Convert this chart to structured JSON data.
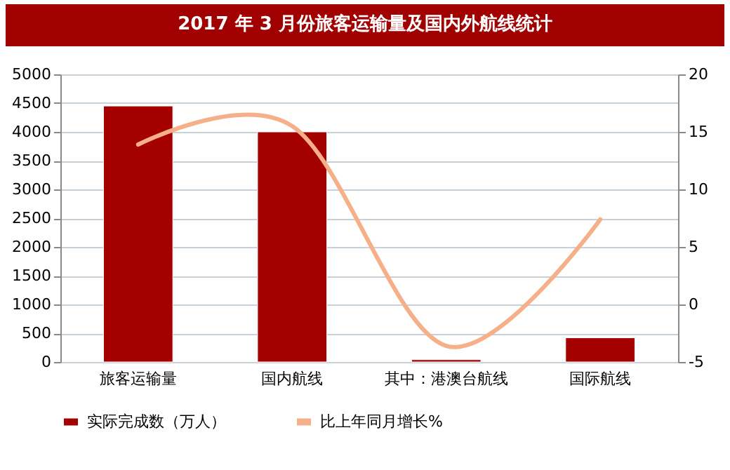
{
  "chart_data": {
    "type": "bar",
    "title": "2017 年 3 月份旅客运输量及国内外航线统计",
    "categories": [
      "旅客运输量",
      "国内航线",
      "其中：港澳台航线",
      "国际航线"
    ],
    "series": [
      {
        "name": "实际完成数（万人）",
        "color": "#a50000",
        "values": [
          4450,
          4000,
          40,
          420
        ]
      },
      {
        "name": "比上年同月增长%",
        "type": "line",
        "axis": "y2",
        "color": "#f5b08a",
        "values": [
          13.9,
          15.5,
          -3.6,
          7.4
        ]
      }
    ],
    "ylim": [
      0,
      5000
    ],
    "yticks": [
      0,
      500,
      1000,
      1500,
      2000,
      2500,
      3000,
      3500,
      4000,
      4500,
      5000
    ],
    "y2lim": [
      -5,
      20
    ],
    "y2ticks": [
      -5,
      0,
      5,
      10,
      15,
      20
    ],
    "grid": "y",
    "legend": "bottom"
  }
}
